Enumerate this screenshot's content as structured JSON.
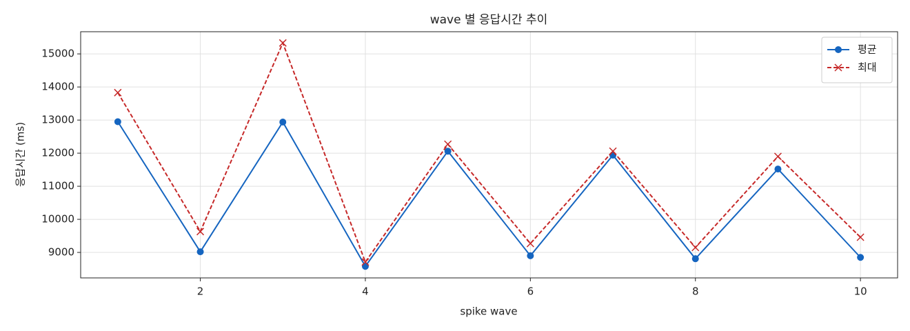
{
  "chart_data": {
    "type": "line",
    "title": "wave 별 응답시간 추이",
    "x_label": "spike wave",
    "y_label": "응답시간 (ms)",
    "x": [
      1,
      2,
      3,
      4,
      5,
      6,
      7,
      8,
      9,
      10
    ],
    "series": [
      {
        "name": "평균",
        "color": "#1565c0",
        "marker": "o",
        "linestyle": "solid",
        "values": [
          12950,
          9020,
          12940,
          8580,
          12060,
          8900,
          11940,
          8810,
          11520,
          8850
        ]
      },
      {
        "name": "최대",
        "color": "#c62828",
        "marker": "x",
        "linestyle": "dashed",
        "values": [
          13830,
          9630,
          15330,
          8710,
          12270,
          9270,
          12060,
          9150,
          11900,
          9460
        ]
      }
    ],
    "xlim": [
      0.55,
      10.45
    ],
    "ylim": [
      8230,
      15670
    ],
    "xticks": [
      2,
      4,
      6,
      8,
      10
    ],
    "yticks": [
      9000,
      10000,
      11000,
      12000,
      13000,
      14000,
      15000
    ],
    "grid": true,
    "legend": "upper right"
  }
}
